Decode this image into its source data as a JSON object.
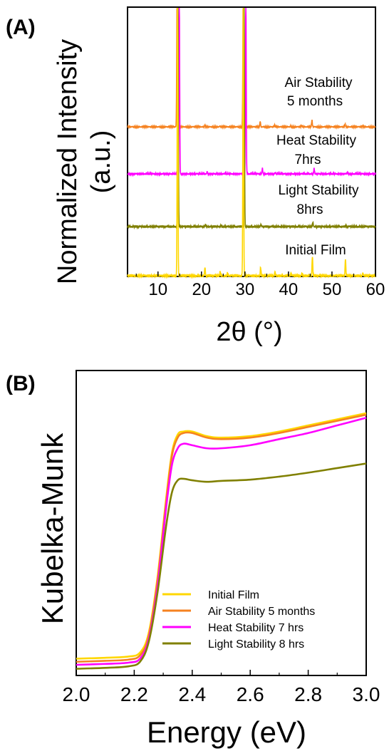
{
  "chart_data": [
    {
      "panel_label": "(A)",
      "type": "line",
      "xlabel": "2θ (°)",
      "ylabel": "Normalized Intensity (a.u.)",
      "ylabel_lines": [
        "Normalized Intensity",
        "(a.u.)"
      ],
      "xlim": [
        3,
        60
      ],
      "xticks": [
        10,
        20,
        30,
        40,
        50,
        60
      ],
      "yticks_shown": false,
      "annotations": [
        {
          "lines": [
            "Air Stability",
            "5 months"
          ],
          "series": "Air Stability 5 months"
        },
        {
          "lines": [
            "Heat Stability",
            "7hrs"
          ],
          "series": "Heat Stability 7hrs"
        },
        {
          "lines": [
            "Light Stability",
            "8hrs"
          ],
          "series": "Light Stability 8hrs"
        },
        {
          "lines": [
            "Initial Film"
          ],
          "series": "Initial Film"
        }
      ],
      "series": [
        {
          "name": "Air Stability 5 months",
          "color": "#f58220",
          "baseline": 0.75,
          "peaks": [
            [
              14.4,
              1.0
            ],
            [
              20.8,
              0.01
            ],
            [
              24.2,
              0.006
            ],
            [
              29.6,
              1.0
            ],
            [
              33.5,
              0.04
            ],
            [
              36.8,
              0.012
            ],
            [
              40.5,
              0.008
            ],
            [
              43.0,
              0.01
            ],
            [
              45.4,
              0.05
            ],
            [
              53.0,
              0.02
            ],
            [
              57.0,
              0.008
            ]
          ]
        },
        {
          "name": "Heat Stability 7hrs",
          "color": "#ff00ff",
          "baseline": 0.5,
          "peaks": [
            [
              14.9,
              1.0
            ],
            [
              21.3,
              0.012
            ],
            [
              25.5,
              0.006
            ],
            [
              30.2,
              1.0
            ],
            [
              34.0,
              0.03
            ],
            [
              37.0,
              0.008
            ],
            [
              43.5,
              0.006
            ],
            [
              45.9,
              0.03
            ],
            [
              53.5,
              0.006
            ]
          ]
        },
        {
          "name": "Light Stability 8hrs",
          "color": "#808000",
          "baseline": 0.25,
          "peaks": [
            [
              14.6,
              1.0
            ],
            [
              20.9,
              0.008
            ],
            [
              24.5,
              0.004
            ],
            [
              29.8,
              1.0
            ],
            [
              33.7,
              0.01
            ],
            [
              45.6,
              0.02
            ],
            [
              53.2,
              0.006
            ]
          ]
        },
        {
          "name": "Initial Film",
          "color": "#ffd700",
          "baseline": 0.0,
          "peaks": [
            [
              14.5,
              1.0
            ],
            [
              20.8,
              0.03
            ],
            [
              24.3,
              0.015
            ],
            [
              26.0,
              0.01
            ],
            [
              29.6,
              1.0
            ],
            [
              33.6,
              0.03
            ],
            [
              36.9,
              0.015
            ],
            [
              40.6,
              0.01
            ],
            [
              43.1,
              0.01
            ],
            [
              45.5,
              0.07
            ],
            [
              53.1,
              0.06
            ],
            [
              57.1,
              0.01
            ]
          ]
        }
      ]
    },
    {
      "panel_label": "(B)",
      "type": "line",
      "xlabel": "Energy (eV)",
      "ylabel": "Kubelka-Munk",
      "xlim": [
        2.0,
        3.0
      ],
      "xticks": [
        2.0,
        2.2,
        2.4,
        2.6,
        2.8,
        3.0
      ],
      "xtick_labels": [
        "2.0",
        "2.2",
        "2.4",
        "2.6",
        "2.8",
        "3.0"
      ],
      "ylim": [
        0,
        1
      ],
      "yticks_shown": false,
      "legend_position": "bottom-center",
      "series": [
        {
          "name": "Initial Film",
          "color": "#ffd700",
          "points": [
            [
              2.0,
              0.055
            ],
            [
              2.1,
              0.058
            ],
            [
              2.18,
              0.062
            ],
            [
              2.22,
              0.075
            ],
            [
              2.25,
              0.14
            ],
            [
              2.28,
              0.32
            ],
            [
              2.31,
              0.58
            ],
            [
              2.33,
              0.73
            ],
            [
              2.35,
              0.79
            ],
            [
              2.37,
              0.8
            ],
            [
              2.4,
              0.8
            ],
            [
              2.45,
              0.785
            ],
            [
              2.5,
              0.78
            ],
            [
              2.6,
              0.785
            ],
            [
              2.7,
              0.8
            ],
            [
              2.8,
              0.82
            ],
            [
              2.9,
              0.84
            ],
            [
              3.0,
              0.86
            ]
          ]
        },
        {
          "name": "Air Stability 5 months",
          "color": "#f58220",
          "points": [
            [
              2.0,
              0.045
            ],
            [
              2.1,
              0.048
            ],
            [
              2.18,
              0.052
            ],
            [
              2.22,
              0.066
            ],
            [
              2.25,
              0.13
            ],
            [
              2.28,
              0.31
            ],
            [
              2.31,
              0.57
            ],
            [
              2.33,
              0.72
            ],
            [
              2.35,
              0.78
            ],
            [
              2.37,
              0.795
            ],
            [
              2.4,
              0.795
            ],
            [
              2.45,
              0.78
            ],
            [
              2.5,
              0.775
            ],
            [
              2.6,
              0.78
            ],
            [
              2.7,
              0.795
            ],
            [
              2.8,
              0.815
            ],
            [
              2.9,
              0.835
            ],
            [
              3.0,
              0.855
            ]
          ]
        },
        {
          "name": "Heat Stability 7 hrs",
          "color": "#ff00ff",
          "points": [
            [
              2.0,
              0.035
            ],
            [
              2.1,
              0.038
            ],
            [
              2.18,
              0.042
            ],
            [
              2.22,
              0.055
            ],
            [
              2.25,
              0.12
            ],
            [
              2.28,
              0.29
            ],
            [
              2.31,
              0.55
            ],
            [
              2.33,
              0.69
            ],
            [
              2.35,
              0.745
            ],
            [
              2.37,
              0.76
            ],
            [
              2.4,
              0.755
            ],
            [
              2.45,
              0.745
            ],
            [
              2.5,
              0.745
            ],
            [
              2.6,
              0.755
            ],
            [
              2.7,
              0.775
            ],
            [
              2.8,
              0.795
            ],
            [
              2.9,
              0.82
            ],
            [
              3.0,
              0.845
            ]
          ]
        },
        {
          "name": "Light Stability 8 hrs",
          "color": "#808000",
          "points": [
            [
              2.0,
              0.022
            ],
            [
              2.1,
              0.025
            ],
            [
              2.18,
              0.03
            ],
            [
              2.22,
              0.045
            ],
            [
              2.25,
              0.11
            ],
            [
              2.28,
              0.27
            ],
            [
              2.31,
              0.49
            ],
            [
              2.33,
              0.6
            ],
            [
              2.35,
              0.64
            ],
            [
              2.37,
              0.645
            ],
            [
              2.4,
              0.64
            ],
            [
              2.45,
              0.635
            ],
            [
              2.5,
              0.638
            ],
            [
              2.6,
              0.642
            ],
            [
              2.7,
              0.652
            ],
            [
              2.8,
              0.665
            ],
            [
              2.9,
              0.68
            ],
            [
              3.0,
              0.695
            ]
          ]
        }
      ]
    }
  ]
}
